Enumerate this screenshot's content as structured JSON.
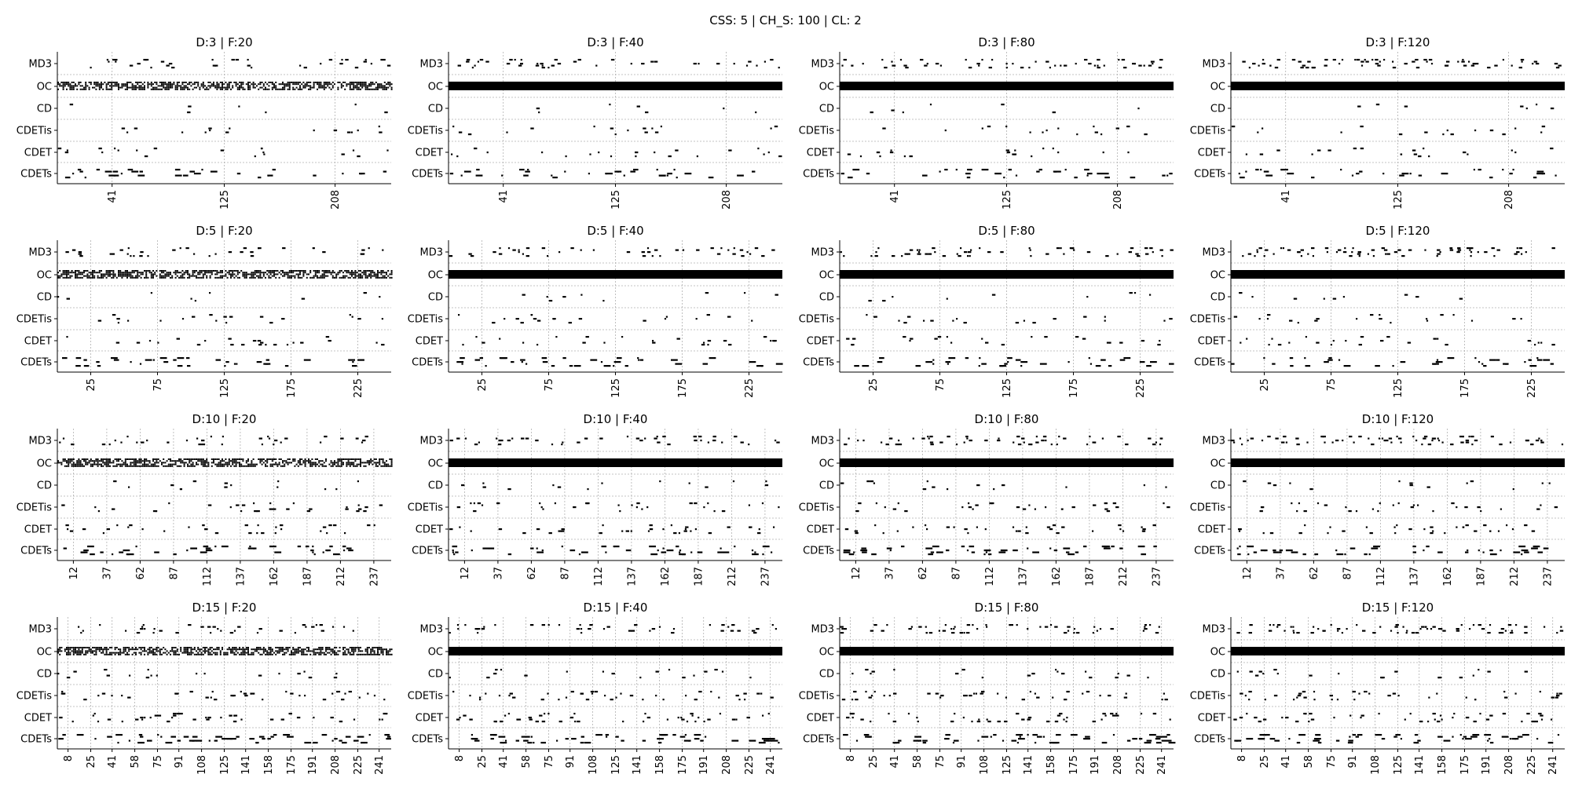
{
  "suptitle": "CSS: 5 | CH_S: 100 | CL: 2",
  "y_categories": [
    "MD3",
    "OC",
    "CD",
    "CDETis",
    "CDET",
    "CDETs"
  ],
  "colors": {
    "marker": "#000000",
    "grid": "#b0b0b0",
    "axis": "#000000"
  },
  "chart_data": [
    {
      "type": "scatter",
      "title": "D:3 | F:20",
      "depth": 3,
      "frequency": 20,
      "x_range": [
        0,
        250
      ],
      "x_ticks": [
        41,
        125,
        208
      ],
      "oc_density": 0.6
    },
    {
      "type": "scatter",
      "title": "D:3 | F:40",
      "depth": 3,
      "frequency": 40,
      "x_range": [
        0,
        250
      ],
      "x_ticks": [
        41,
        125,
        208
      ],
      "oc_density": 1.0
    },
    {
      "type": "scatter",
      "title": "D:3 | F:80",
      "depth": 3,
      "frequency": 80,
      "x_range": [
        0,
        250
      ],
      "x_ticks": [
        41,
        125,
        208
      ],
      "oc_density": 1.0
    },
    {
      "type": "scatter",
      "title": "D:3 | F:120",
      "depth": 3,
      "frequency": 120,
      "x_range": [
        0,
        250
      ],
      "x_ticks": [
        41,
        125,
        208
      ],
      "oc_density": 1.0
    },
    {
      "type": "scatter",
      "title": "D:5 | F:20",
      "depth": 5,
      "frequency": 20,
      "x_range": [
        0,
        250
      ],
      "x_ticks": [
        25,
        75,
        125,
        175,
        225
      ],
      "oc_density": 0.6
    },
    {
      "type": "scatter",
      "title": "D:5 | F:40",
      "depth": 5,
      "frequency": 40,
      "x_range": [
        0,
        250
      ],
      "x_ticks": [
        25,
        75,
        125,
        175,
        225
      ],
      "oc_density": 1.0
    },
    {
      "type": "scatter",
      "title": "D:5 | F:80",
      "depth": 5,
      "frequency": 80,
      "x_range": [
        0,
        250
      ],
      "x_ticks": [
        25,
        75,
        125,
        175,
        225
      ],
      "oc_density": 1.0
    },
    {
      "type": "scatter",
      "title": "D:5 | F:120",
      "depth": 5,
      "frequency": 120,
      "x_range": [
        0,
        250
      ],
      "x_ticks": [
        25,
        75,
        125,
        175,
        225
      ],
      "oc_density": 1.0
    },
    {
      "type": "scatter",
      "title": "D:10 | F:20",
      "depth": 10,
      "frequency": 20,
      "x_range": [
        0,
        250
      ],
      "x_ticks": [
        12,
        37,
        62,
        87,
        112,
        137,
        162,
        187,
        212,
        237
      ],
      "oc_density": 0.6
    },
    {
      "type": "scatter",
      "title": "D:10 | F:40",
      "depth": 10,
      "frequency": 40,
      "x_range": [
        0,
        250
      ],
      "x_ticks": [
        12,
        37,
        62,
        87,
        112,
        137,
        162,
        187,
        212,
        237
      ],
      "oc_density": 1.0
    },
    {
      "type": "scatter",
      "title": "D:10 | F:80",
      "depth": 10,
      "frequency": 80,
      "x_range": [
        0,
        250
      ],
      "x_ticks": [
        12,
        37,
        62,
        87,
        112,
        137,
        162,
        187,
        212,
        237
      ],
      "oc_density": 1.0
    },
    {
      "type": "scatter",
      "title": "D:10 | F:120",
      "depth": 10,
      "frequency": 120,
      "x_range": [
        0,
        250
      ],
      "x_ticks": [
        12,
        37,
        62,
        87,
        112,
        137,
        162,
        187,
        212,
        237
      ],
      "oc_density": 1.0
    },
    {
      "type": "scatter",
      "title": "D:15 | F:20",
      "depth": 15,
      "frequency": 20,
      "x_range": [
        0,
        250
      ],
      "x_ticks": [
        8,
        25,
        41,
        58,
        75,
        91,
        108,
        125,
        141,
        158,
        175,
        191,
        208,
        225,
        241
      ],
      "oc_density": 0.6
    },
    {
      "type": "scatter",
      "title": "D:15 | F:40",
      "depth": 15,
      "frequency": 40,
      "x_range": [
        0,
        250
      ],
      "x_ticks": [
        8,
        25,
        41,
        58,
        75,
        91,
        108,
        125,
        141,
        158,
        175,
        191,
        208,
        225,
        241
      ],
      "oc_density": 1.0
    },
    {
      "type": "scatter",
      "title": "D:15 | F:80",
      "depth": 15,
      "frequency": 80,
      "x_range": [
        0,
        250
      ],
      "x_ticks": [
        8,
        25,
        41,
        58,
        75,
        91,
        108,
        125,
        141,
        158,
        175,
        191,
        208,
        225,
        241
      ],
      "oc_density": 1.0
    },
    {
      "type": "scatter",
      "title": "D:15 | F:120",
      "depth": 15,
      "frequency": 120,
      "x_range": [
        0,
        250
      ],
      "x_ticks": [
        8,
        25,
        41,
        58,
        75,
        91,
        108,
        125,
        141,
        158,
        175,
        191,
        208,
        225,
        241
      ],
      "oc_density": 1.0
    }
  ]
}
